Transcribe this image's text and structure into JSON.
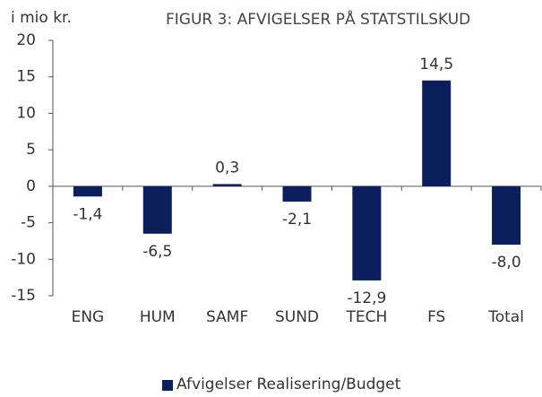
{
  "chart_data": {
    "type": "bar",
    "title": "FIGUR 3: AFVIGELSER PÅ STATSTILSKUD",
    "y_label": "i mio kr.",
    "categories": [
      "ENG",
      "HUM",
      "SAMF",
      "SUND",
      "TECH",
      "FS",
      "Total"
    ],
    "series": [
      {
        "name": "Afvigelser Realisering/Budget",
        "color": "#0b1f5c",
        "values": [
          -1.4,
          -6.5,
          0.3,
          -2.1,
          -12.9,
          14.5,
          -8.0
        ],
        "value_labels": [
          "-1,4",
          "-6,5",
          "0,3",
          "-2,1",
          "-12,9",
          "14,5",
          "-8,0"
        ]
      }
    ],
    "ylim": [
      -15,
      20
    ],
    "yticks": [
      20,
      15,
      10,
      5,
      0,
      -5,
      -10,
      -15
    ],
    "legend": "bottom"
  }
}
